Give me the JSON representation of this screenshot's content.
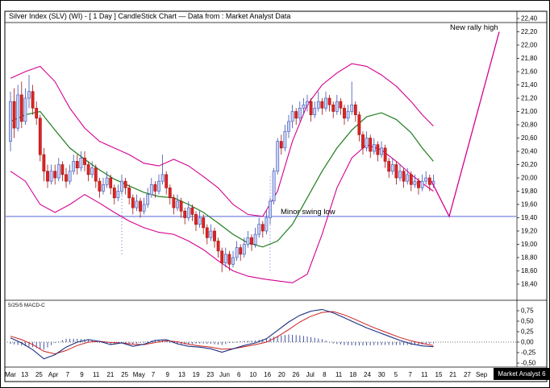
{
  "header": {
    "title": "Silver Index (SLV) (WI) -  [ 1 Day ] CandleStick Chart — Data from : Market Analyst Data"
  },
  "annotations": {
    "new_rally_high": "New rally high",
    "minor_swing_low": "Minor swing low"
  },
  "indicator": {
    "label": "5/25/5 MACD-C"
  },
  "watermark": {
    "text": "Market Analyst 6"
  },
  "price_axis": {
    "labels": [
      "22,40",
      "22,20",
      "22,00",
      "21,80",
      "21,60",
      "21,40",
      "21,20",
      "21,00",
      "20,80",
      "20,60",
      "20,40",
      "20,20",
      "20,00",
      "19,80",
      "19,60",
      "19,40",
      "19,20",
      "19,00",
      "18,80",
      "18,60",
      "18,40"
    ]
  },
  "macd_axis": {
    "labels": [
      "0,75",
      "0,50",
      "0,25",
      "0,00",
      "-0,25",
      "-0,50"
    ]
  },
  "x_axis": {
    "labels": [
      "Mar",
      "13",
      "25",
      "Apr",
      "7",
      "9",
      "11",
      "21",
      "25",
      "May",
      "7",
      "9",
      "13",
      "19",
      "23",
      "Jun",
      "6",
      "10",
      "16",
      "20",
      "26",
      "Jul",
      "8",
      "11",
      "18",
      "24",
      "30",
      "5",
      "7",
      "11",
      "15",
      "21",
      "27",
      "Sep"
    ]
  },
  "colors": {
    "border": "#000000",
    "band": "#d40090",
    "projection": "#d40090",
    "ma": "#1f7d1f",
    "up_fill": "#c8d2f4",
    "up_stroke": "#3b52b4",
    "down_fill": "#e02424",
    "down_stroke": "#a01010",
    "swing_line": "#5968d8",
    "marker": "#5968d8",
    "macd_line": "#1b2f7e",
    "signal_line": "#cc2222",
    "histogram": "#44549e",
    "text": "#000000"
  },
  "chart_data": {
    "type": "candlestick",
    "instrument": "Silver Index (SLV)",
    "timeframe": "1 Day",
    "price_range": [
      18.4,
      22.4
    ],
    "macd_range": [
      -0.5,
      0.75
    ],
    "swing_low_level": 19.42,
    "candles_ohlc": [
      [
        20.55,
        21.3,
        20.4,
        21.15
      ],
      [
        21.15,
        21.35,
        20.6,
        20.75
      ],
      [
        20.75,
        21.4,
        20.7,
        21.25
      ],
      [
        21.25,
        21.45,
        20.75,
        20.85
      ],
      [
        20.85,
        21.35,
        20.8,
        21.2
      ],
      [
        21.2,
        21.55,
        21.05,
        21.3
      ],
      [
        21.3,
        21.4,
        20.95,
        21.05
      ],
      [
        21.05,
        21.15,
        20.8,
        20.9
      ],
      [
        20.9,
        20.95,
        20.25,
        20.35
      ],
      [
        20.35,
        20.45,
        19.95,
        20.1
      ],
      [
        20.1,
        20.2,
        19.85,
        19.95
      ],
      [
        19.95,
        20.2,
        19.9,
        20.1
      ],
      [
        20.1,
        20.2,
        19.9,
        20.0
      ],
      [
        20.0,
        20.3,
        19.95,
        20.2
      ],
      [
        20.2,
        20.25,
        19.95,
        20.05
      ],
      [
        20.05,
        20.15,
        19.85,
        19.95
      ],
      [
        19.95,
        20.2,
        19.9,
        20.1
      ],
      [
        20.1,
        20.35,
        20.05,
        20.25
      ],
      [
        20.25,
        20.35,
        20.05,
        20.15
      ],
      [
        20.15,
        20.4,
        20.1,
        20.3
      ],
      [
        20.3,
        20.4,
        20.1,
        20.2
      ],
      [
        20.2,
        20.25,
        19.95,
        20.05
      ],
      [
        20.05,
        20.25,
        20.0,
        20.15
      ],
      [
        20.15,
        20.2,
        19.85,
        19.95
      ],
      [
        19.95,
        20.0,
        19.7,
        19.8
      ],
      [
        19.8,
        20.0,
        19.75,
        19.9
      ],
      [
        19.9,
        20.1,
        19.85,
        20.0
      ],
      [
        20.0,
        20.05,
        19.75,
        19.85
      ],
      [
        19.85,
        19.9,
        19.6,
        19.7
      ],
      [
        19.7,
        19.9,
        19.65,
        19.8
      ],
      [
        19.8,
        20.05,
        19.75,
        19.95
      ],
      [
        19.95,
        20.0,
        19.75,
        19.85
      ],
      [
        19.85,
        19.9,
        19.6,
        19.7
      ],
      [
        19.7,
        19.75,
        19.45,
        19.55
      ],
      [
        19.55,
        19.75,
        19.5,
        19.65
      ],
      [
        19.65,
        19.7,
        19.4,
        19.5
      ],
      [
        19.5,
        19.7,
        19.45,
        19.6
      ],
      [
        19.6,
        19.85,
        19.55,
        19.75
      ],
      [
        19.75,
        20.0,
        19.7,
        19.9
      ],
      [
        19.9,
        19.95,
        19.7,
        19.8
      ],
      [
        19.8,
        20.05,
        19.75,
        19.95
      ],
      [
        19.95,
        20.35,
        19.9,
        20.05
      ],
      [
        20.05,
        20.1,
        19.75,
        19.85
      ],
      [
        19.85,
        19.9,
        19.6,
        19.7
      ],
      [
        19.7,
        19.75,
        19.45,
        19.55
      ],
      [
        19.55,
        19.75,
        19.5,
        19.65
      ],
      [
        19.65,
        19.7,
        19.4,
        19.5
      ],
      [
        19.5,
        19.55,
        19.3,
        19.4
      ],
      [
        19.4,
        19.65,
        19.35,
        19.55
      ],
      [
        19.55,
        19.6,
        19.35,
        19.45
      ],
      [
        19.45,
        19.5,
        19.2,
        19.3
      ],
      [
        19.3,
        19.5,
        19.25,
        19.4
      ],
      [
        19.4,
        19.45,
        19.15,
        19.25
      ],
      [
        19.25,
        19.3,
        19.0,
        19.1
      ],
      [
        19.1,
        19.3,
        19.05,
        19.2
      ],
      [
        19.2,
        19.25,
        18.95,
        19.05
      ],
      [
        19.05,
        19.1,
        18.8,
        18.9
      ],
      [
        18.9,
        18.95,
        18.58,
        18.72
      ],
      [
        18.72,
        18.95,
        18.65,
        18.85
      ],
      [
        18.85,
        18.9,
        18.6,
        18.7
      ],
      [
        18.7,
        18.9,
        18.65,
        18.8
      ],
      [
        18.8,
        19.05,
        18.75,
        18.95
      ],
      [
        18.95,
        19.0,
        18.75,
        18.85
      ],
      [
        18.85,
        19.1,
        18.8,
        19.0
      ],
      [
        19.0,
        19.2,
        18.95,
        19.1
      ],
      [
        19.1,
        19.15,
        18.9,
        19.0
      ],
      [
        19.0,
        19.25,
        18.95,
        19.15
      ],
      [
        19.15,
        19.4,
        19.1,
        19.3
      ],
      [
        19.3,
        19.35,
        19.1,
        19.2
      ],
      [
        19.2,
        19.5,
        19.15,
        19.4
      ],
      [
        19.4,
        19.7,
        19.3,
        19.65
      ],
      [
        19.65,
        20.15,
        19.6,
        20.1
      ],
      [
        20.1,
        20.6,
        20.05,
        20.55
      ],
      [
        20.55,
        20.65,
        20.35,
        20.45
      ],
      [
        20.45,
        20.8,
        20.4,
        20.7
      ],
      [
        20.7,
        20.95,
        20.6,
        20.85
      ],
      [
        20.85,
        21.1,
        20.75,
        21.0
      ],
      [
        21.0,
        21.05,
        20.8,
        20.9
      ],
      [
        20.9,
        21.15,
        20.85,
        21.05
      ],
      [
        21.05,
        21.2,
        20.95,
        21.1
      ],
      [
        21.1,
        21.25,
        21.0,
        21.15
      ],
      [
        21.15,
        21.2,
        20.85,
        20.95
      ],
      [
        20.95,
        21.15,
        20.9,
        21.05
      ],
      [
        21.05,
        21.3,
        21.0,
        21.15
      ],
      [
        21.15,
        21.2,
        20.95,
        21.05
      ],
      [
        21.05,
        21.3,
        21.0,
        21.2
      ],
      [
        21.2,
        21.25,
        21.0,
        21.1
      ],
      [
        21.1,
        21.15,
        20.9,
        21.0
      ],
      [
        21.0,
        21.25,
        20.95,
        21.15
      ],
      [
        21.15,
        21.2,
        20.95,
        21.05
      ],
      [
        21.05,
        21.1,
        20.8,
        20.9
      ],
      [
        20.9,
        21.1,
        20.85,
        21.0
      ],
      [
        21.0,
        21.45,
        20.95,
        21.1
      ],
      [
        21.1,
        21.15,
        20.85,
        20.95
      ],
      [
        20.95,
        21.0,
        20.55,
        20.65
      ],
      [
        20.65,
        20.7,
        20.35,
        20.45
      ],
      [
        20.45,
        20.7,
        20.4,
        20.6
      ],
      [
        20.6,
        20.65,
        20.3,
        20.4
      ],
      [
        20.4,
        20.6,
        20.35,
        20.5
      ],
      [
        20.5,
        20.55,
        20.25,
        20.35
      ],
      [
        20.35,
        20.55,
        20.3,
        20.45
      ],
      [
        20.45,
        20.5,
        20.15,
        20.25
      ],
      [
        20.25,
        20.3,
        20.0,
        20.1
      ],
      [
        20.1,
        20.3,
        20.05,
        20.2
      ],
      [
        20.2,
        20.25,
        19.9,
        20.0
      ],
      [
        20.0,
        20.2,
        19.95,
        20.1
      ],
      [
        20.1,
        20.15,
        19.85,
        19.95
      ],
      [
        19.95,
        20.15,
        19.9,
        20.05
      ],
      [
        20.05,
        20.1,
        19.8,
        19.9
      ],
      [
        19.9,
        20.05,
        19.85,
        19.95
      ],
      [
        19.95,
        20.0,
        19.75,
        19.85
      ],
      [
        19.85,
        20.05,
        19.8,
        19.95
      ],
      [
        19.95,
        20.1,
        19.9,
        20.0
      ],
      [
        20.0,
        20.05,
        19.8,
        19.9
      ],
      [
        19.9,
        20.05,
        19.85,
        19.95
      ]
    ],
    "bollinger_upper": [
      [
        0,
        21.5
      ],
      [
        4,
        21.6
      ],
      [
        8,
        21.68
      ],
      [
        12,
        21.45
      ],
      [
        16,
        21.05
      ],
      [
        20,
        20.75
      ],
      [
        24,
        20.55
      ],
      [
        28,
        20.45
      ],
      [
        32,
        20.35
      ],
      [
        36,
        20.22
      ],
      [
        40,
        20.18
      ],
      [
        44,
        20.28
      ],
      [
        48,
        20.18
      ],
      [
        52,
        20.02
      ],
      [
        56,
        19.85
      ],
      [
        60,
        19.6
      ],
      [
        64,
        19.45
      ],
      [
        68,
        19.42
      ],
      [
        72,
        19.8
      ],
      [
        76,
        20.55
      ],
      [
        80,
        21.1
      ],
      [
        84,
        21.4
      ],
      [
        88,
        21.58
      ],
      [
        92,
        21.72
      ],
      [
        96,
        21.68
      ],
      [
        100,
        21.55
      ],
      [
        104,
        21.38
      ],
      [
        108,
        21.15
      ],
      [
        111,
        20.95
      ],
      [
        114,
        20.78
      ]
    ],
    "bollinger_lower": [
      [
        0,
        20.1
      ],
      [
        4,
        19.95
      ],
      [
        8,
        19.6
      ],
      [
        12,
        19.48
      ],
      [
        16,
        19.6
      ],
      [
        20,
        19.75
      ],
      [
        24,
        19.62
      ],
      [
        28,
        19.48
      ],
      [
        32,
        19.35
      ],
      [
        36,
        19.25
      ],
      [
        40,
        19.18
      ],
      [
        44,
        19.15
      ],
      [
        48,
        19.05
      ],
      [
        52,
        18.92
      ],
      [
        56,
        18.75
      ],
      [
        60,
        18.6
      ],
      [
        64,
        18.52
      ],
      [
        68,
        18.48
      ],
      [
        72,
        18.45
      ],
      [
        76,
        18.42
      ],
      [
        80,
        18.55
      ],
      [
        84,
        19.15
      ],
      [
        88,
        19.85
      ],
      [
        92,
        20.3
      ],
      [
        96,
        20.5
      ],
      [
        100,
        20.42
      ],
      [
        104,
        20.25
      ],
      [
        108,
        20.05
      ],
      [
        111,
        19.92
      ],
      [
        114,
        19.8
      ]
    ],
    "moving_average": [
      [
        0,
        20.85
      ],
      [
        4,
        20.95
      ],
      [
        8,
        21.0
      ],
      [
        12,
        20.72
      ],
      [
        16,
        20.45
      ],
      [
        20,
        20.28
      ],
      [
        24,
        20.12
      ],
      [
        28,
        19.98
      ],
      [
        32,
        19.88
      ],
      [
        36,
        19.78
      ],
      [
        40,
        19.72
      ],
      [
        44,
        19.7
      ],
      [
        48,
        19.6
      ],
      [
        52,
        19.48
      ],
      [
        56,
        19.32
      ],
      [
        60,
        19.15
      ],
      [
        64,
        19.02
      ],
      [
        68,
        18.96
      ],
      [
        72,
        19.05
      ],
      [
        76,
        19.3
      ],
      [
        80,
        19.7
      ],
      [
        84,
        20.1
      ],
      [
        88,
        20.45
      ],
      [
        92,
        20.72
      ],
      [
        96,
        20.92
      ],
      [
        100,
        20.98
      ],
      [
        104,
        20.88
      ],
      [
        108,
        20.68
      ],
      [
        111,
        20.45
      ],
      [
        114,
        20.25
      ]
    ],
    "macd_line": [
      [
        0,
        0.1
      ],
      [
        3,
        -0.02
      ],
      [
        6,
        -0.18
      ],
      [
        9,
        -0.4
      ],
      [
        12,
        -0.3
      ],
      [
        15,
        -0.12
      ],
      [
        18,
        0.0
      ],
      [
        21,
        0.06
      ],
      [
        24,
        0.02
      ],
      [
        27,
        -0.06
      ],
      [
        30,
        -0.02
      ],
      [
        33,
        -0.1
      ],
      [
        36,
        -0.05
      ],
      [
        39,
        0.04
      ],
      [
        42,
        0.06
      ],
      [
        45,
        -0.04
      ],
      [
        48,
        -0.1
      ],
      [
        51,
        -0.12
      ],
      [
        54,
        -0.16
      ],
      [
        57,
        -0.24
      ],
      [
        60,
        -0.16
      ],
      [
        63,
        -0.08
      ],
      [
        66,
        -0.02
      ],
      [
        69,
        0.08
      ],
      [
        72,
        0.28
      ],
      [
        75,
        0.48
      ],
      [
        78,
        0.64
      ],
      [
        81,
        0.74
      ],
      [
        84,
        0.78
      ],
      [
        87,
        0.7
      ],
      [
        90,
        0.58
      ],
      [
        93,
        0.46
      ],
      [
        96,
        0.34
      ],
      [
        99,
        0.24
      ],
      [
        102,
        0.14
      ],
      [
        105,
        0.04
      ],
      [
        108,
        -0.04
      ],
      [
        111,
        -0.09
      ],
      [
        114,
        -0.11
      ]
    ],
    "macd_signal": [
      [
        0,
        0.14
      ],
      [
        3,
        0.06
      ],
      [
        6,
        -0.06
      ],
      [
        9,
        -0.22
      ],
      [
        12,
        -0.28
      ],
      [
        15,
        -0.2
      ],
      [
        18,
        -0.08
      ],
      [
        21,
        0.0
      ],
      [
        24,
        0.02
      ],
      [
        27,
        -0.01
      ],
      [
        30,
        -0.02
      ],
      [
        33,
        -0.05
      ],
      [
        36,
        -0.06
      ],
      [
        39,
        -0.01
      ],
      [
        42,
        0.03
      ],
      [
        45,
        0.01
      ],
      [
        48,
        -0.05
      ],
      [
        51,
        -0.09
      ],
      [
        54,
        -0.12
      ],
      [
        57,
        -0.17
      ],
      [
        60,
        -0.16
      ],
      [
        63,
        -0.11
      ],
      [
        66,
        -0.06
      ],
      [
        69,
        0.0
      ],
      [
        72,
        0.13
      ],
      [
        75,
        0.3
      ],
      [
        78,
        0.48
      ],
      [
        81,
        0.62
      ],
      [
        84,
        0.71
      ],
      [
        87,
        0.73
      ],
      [
        90,
        0.65
      ],
      [
        93,
        0.54
      ],
      [
        96,
        0.42
      ],
      [
        99,
        0.31
      ],
      [
        102,
        0.21
      ],
      [
        105,
        0.11
      ],
      [
        108,
        0.03
      ],
      [
        111,
        -0.03
      ],
      [
        114,
        -0.08
      ]
    ],
    "projection_points": [
      [
        534,
        19.95
      ],
      [
        556,
        19.42
      ],
      [
        618,
        22.2
      ]
    ],
    "vertical_markers": [
      {
        "index": 30,
        "from": 18.85,
        "to": 20.0
      },
      {
        "index": 70,
        "from": 18.6,
        "to": 20.05
      }
    ]
  }
}
